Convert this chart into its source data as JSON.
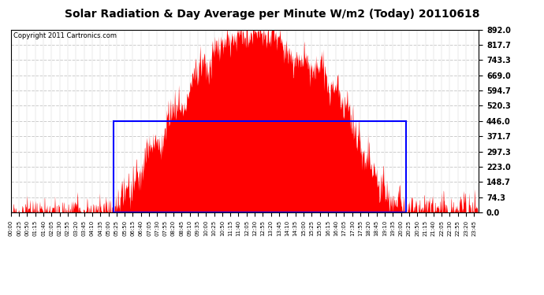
{
  "title": "Solar Radiation & Day Average per Minute W/m2 (Today) 20110618",
  "copyright": "Copyright 2011 Cartronics.com",
  "ymin": 0.0,
  "ymax": 892.0,
  "yticks": [
    0.0,
    74.3,
    148.7,
    223.0,
    297.3,
    371.7,
    446.0,
    520.3,
    594.7,
    669.0,
    743.3,
    817.7,
    892.0
  ],
  "day_avg": 446.0,
  "bg_color": "#ffffff",
  "plot_bg_color": "#ffffff",
  "fill_color": "#ff0000",
  "line_color": "#0000ff",
  "title_color": "#000000",
  "minutes_per_day": 1440,
  "sunrise_minute": 315,
  "sunset_minute": 1215,
  "tick_interval": 25,
  "title_fontsize": 10,
  "copyright_fontsize": 6,
  "ytick_fontsize": 7,
  "xtick_fontsize": 5
}
